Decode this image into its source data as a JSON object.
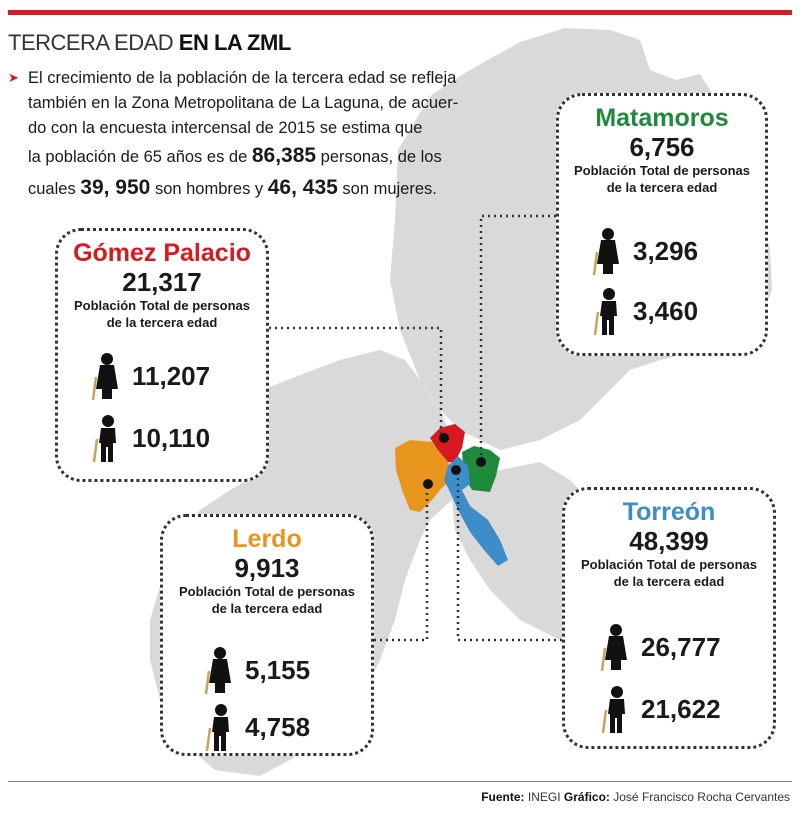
{
  "header": {
    "title_light": "TERCERA EDAD ",
    "title_bold": "EN LA ZML",
    "accent_color": "#d71920"
  },
  "intro": {
    "bullet_icon": "red-chevron",
    "line1": "El crecimiento de la población de la tercera edad se refleja",
    "line2": "también en la Zona Metropolitana de La Laguna, de acuer-",
    "line3": "do con la encuesta intercensal de 2015 se estima que",
    "line4a": "la población de 65 años es de ",
    "line4b": "86,385",
    "line4c": " personas, de los",
    "line5a": "cuales ",
    "line5b": "39, 950",
    "line5c": " son hombres y ",
    "line5d": "46, 435",
    "line5e": " son mujeres."
  },
  "description": "Población Total de personas",
  "description2": "de la tercera edad",
  "municipalities": {
    "gomez": {
      "name": "Gómez Palacio",
      "total": "21,317",
      "women": "11,207",
      "men": "10,110",
      "color": "#d71920"
    },
    "lerdo": {
      "name": "Lerdo",
      "total": "9,913",
      "women": "5,155",
      "men": "4,758",
      "color": "#e8951e"
    },
    "matamoros": {
      "name": "Matamoros",
      "total": "6,756",
      "women": "3,296",
      "men": "3,460",
      "color": "#1f8a3c"
    },
    "torreon": {
      "name": "Torreón",
      "total": "48,399",
      "women": "26,777",
      "men": "21,622",
      "color": "#3d8dc8"
    }
  },
  "icons": {
    "women": "elderly-woman-icon",
    "men": "elderly-man-icon"
  },
  "footer": {
    "source_label": "Fuente:",
    "source_value": " INEGI ",
    "graphic_label": "Gráfico:",
    "graphic_value": " José Francisco Rocha Cervantes"
  }
}
